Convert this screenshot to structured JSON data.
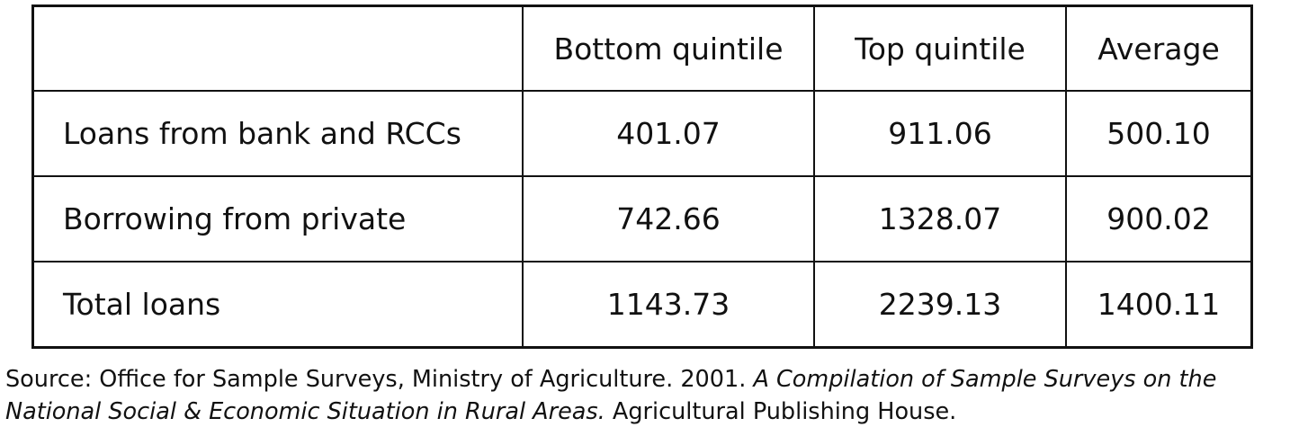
{
  "table": {
    "columns": [
      "Bottom quintile",
      "Top quintile",
      "Average"
    ],
    "rows": [
      {
        "label": "Loans from bank and RCCs",
        "values": [
          "401.07",
          "911.06",
          "500.10"
        ]
      },
      {
        "label": "Borrowing from private",
        "values": [
          "742.66",
          "1328.07",
          "900.02"
        ]
      },
      {
        "label": "Total loans",
        "values": [
          "1143.73",
          "2239.13",
          "1400.11"
        ]
      }
    ]
  },
  "source": {
    "text": "Source: Office for Sample Surveys, Ministry of Agriculture.  2001.",
    "title": "A Compilation of Sample Surveys on the National Social & Economic Situation in Rural Areas.",
    "publisher": "Agricultural Publishing House."
  }
}
